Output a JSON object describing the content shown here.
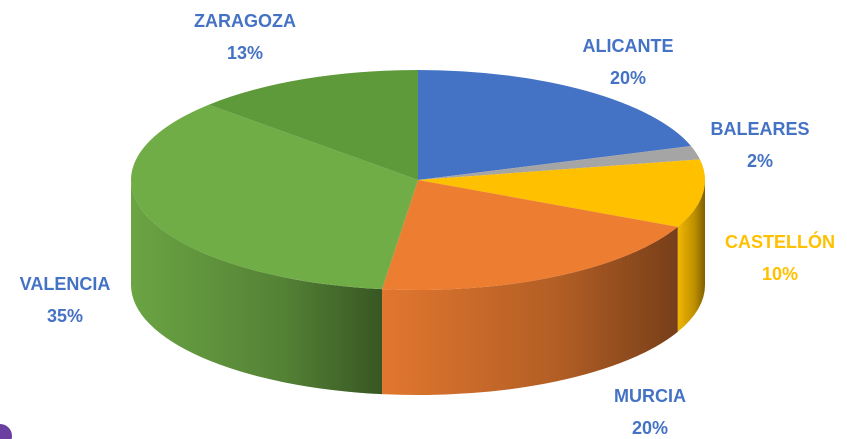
{
  "chart_data": {
    "type": "pie",
    "three_d": true,
    "categories": [
      "ALICANTE",
      "BALEARES",
      "CASTELLÓN",
      "MURCIA",
      "VALENCIA",
      "ZARAGOZA"
    ],
    "values": [
      20,
      2,
      10,
      20,
      35,
      13
    ],
    "value_labels": [
      "20%",
      "2%",
      "10%",
      "20%",
      "35%",
      "13%"
    ],
    "colors": [
      "#4472c4",
      "#a5a5a5",
      "#ffc000",
      "#ed7d31",
      "#70ad47",
      "#5e9a3a"
    ],
    "label_colors": [
      "#4472c4",
      "#4472c4",
      "#ffc000",
      "#4472c4",
      "#4472c4",
      "#4472c4"
    ]
  }
}
